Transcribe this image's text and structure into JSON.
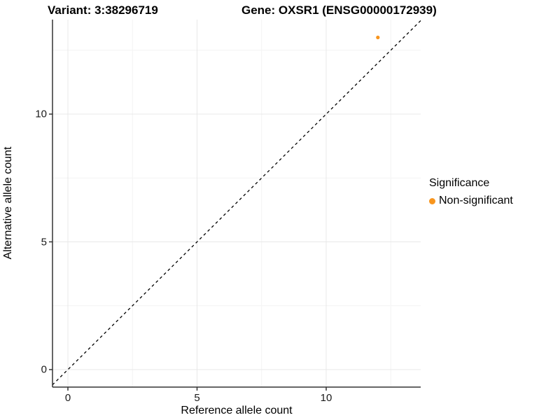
{
  "header": {
    "title_left": "Variant: 3:38296719",
    "title_right": "Gene: OXSR1 (ENSG00000172939)"
  },
  "chart_data": {
    "type": "scatter",
    "title_left": "Variant: 3:38296719",
    "title_right": "Gene: OXSR1 (ENSG00000172939)",
    "xlabel": "Reference allele count",
    "ylabel": "Alternative allele count",
    "xlim": [
      -0.6,
      13.66
    ],
    "ylim": [
      -0.68,
      13.7
    ],
    "xticks": [
      0,
      5,
      10
    ],
    "yticks": [
      0,
      5,
      10
    ],
    "minor_xticks": [
      2.5,
      7.5,
      12.5
    ],
    "minor_yticks": [
      2.5,
      7.5,
      12.5
    ],
    "grid": "on",
    "points": [
      {
        "x": 12,
        "y": 13,
        "series": "Non-significant"
      }
    ],
    "identity_line": {
      "slope": 1,
      "intercept": 0,
      "style": "dashed",
      "color": "#000000"
    },
    "legend": {
      "title": "Significance",
      "position": "right",
      "entries": [
        {
          "label": "Non-significant",
          "color": "#F8951D"
        }
      ]
    },
    "colors": {
      "point": "#F8951D",
      "grid_major": "#E8E8E8",
      "grid_minor": "#F4F4F4",
      "axis_line": "#333333",
      "tick": "#333333"
    }
  }
}
